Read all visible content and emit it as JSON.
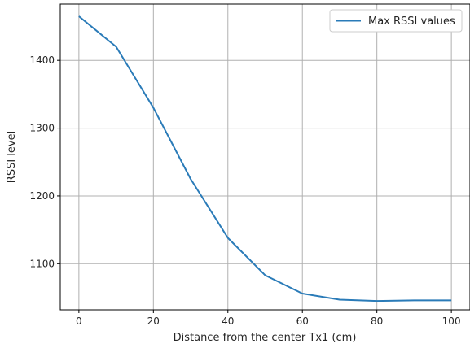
{
  "chart_data": {
    "type": "line",
    "xlabel": "Distance from the center Tx1 (cm)",
    "ylabel": "RSSI level",
    "xlim": [
      -5,
      105
    ],
    "ylim": [
      1032,
      1483
    ],
    "x_ticks": [
      0,
      20,
      40,
      60,
      80,
      100
    ],
    "y_ticks": [
      1100,
      1200,
      1300,
      1400
    ],
    "grid": true,
    "legend_position": "top-right",
    "series": [
      {
        "name": "Max RSSI values",
        "color": "#2a7bb8",
        "x": [
          0,
          10,
          20,
          30,
          40,
          50,
          60,
          70,
          80,
          90,
          100
        ],
        "y": [
          1465,
          1420,
          1330,
          1225,
          1138,
          1083,
          1056,
          1047,
          1045,
          1046,
          1046
        ]
      }
    ]
  }
}
